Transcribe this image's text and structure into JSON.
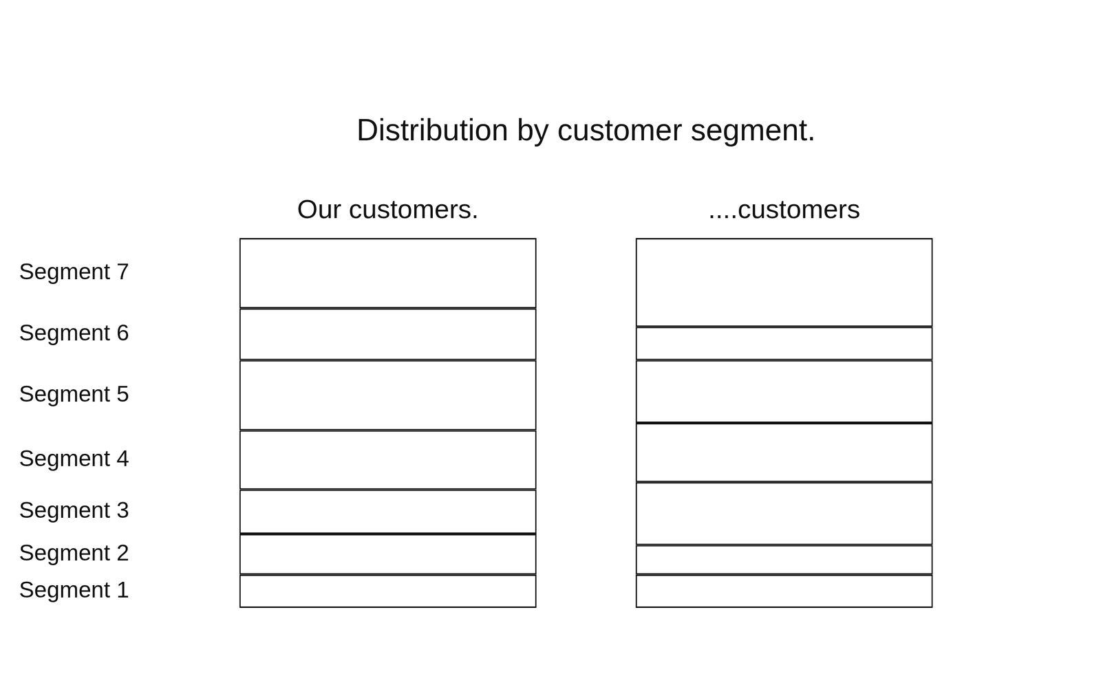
{
  "chart_data": {
    "type": "bar",
    "title": "Distribution by customer segment.",
    "categories": [
      "Our customers.",
      "....customers"
    ],
    "series": [
      {
        "name": "Segment 1",
        "color": "#ffffff",
        "values": [
          9,
          9
        ]
      },
      {
        "name": "Segment 2",
        "color": "#ffffff",
        "values": [
          11,
          8
        ]
      },
      {
        "name": "Segment 3",
        "color": "#ffffff",
        "values": [
          12,
          17
        ]
      },
      {
        "name": "Segment 4",
        "color": "#ffffff",
        "values": [
          16,
          16
        ]
      },
      {
        "name": "Segment 5",
        "color": "#ffffff",
        "values": [
          19,
          17
        ]
      },
      {
        "name": "Segment 6",
        "color": "#ffffff",
        "values": [
          14,
          9
        ]
      },
      {
        "name": "Segment 7",
        "color": "#ffffff",
        "values": [
          19,
          24
        ]
      }
    ],
    "stacked": true,
    "ylim": [
      0,
      100
    ],
    "grid": false,
    "tick_labels": "x"
  }
}
